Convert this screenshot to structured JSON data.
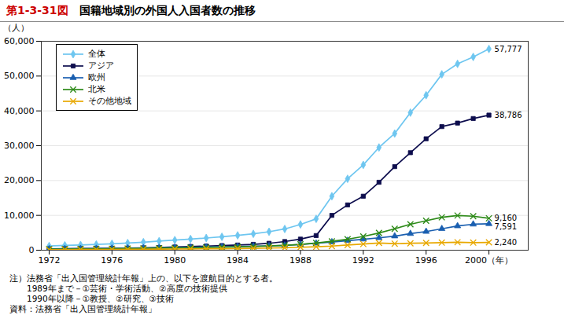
{
  "chart_data": {
    "type": "line",
    "title": "第1-3-31図",
    "subtitle": "　国籍地域別の外国人入国者数の推移",
    "ylabel": "（人）",
    "x": [
      1972,
      1973,
      1974,
      1975,
      1976,
      1977,
      1978,
      1979,
      1980,
      1981,
      1982,
      1983,
      1984,
      1985,
      1986,
      1987,
      1988,
      1989,
      1990,
      1991,
      1992,
      1993,
      1994,
      1995,
      1996,
      1997,
      1998,
      1999,
      2000
    ],
    "series": [
      {
        "name": "全体",
        "color": "#6ec6f0",
        "marker": "diamond",
        "values": [
          1200,
          1400,
          1500,
          1650,
          1850,
          2050,
          2300,
          2600,
          2900,
          3200,
          3500,
          3850,
          4250,
          4700,
          5300,
          6100,
          7400,
          9000,
          15500,
          20500,
          24500,
          29500,
          33500,
          39500,
          44500,
          50500,
          53500,
          55500,
          57777
        ]
      },
      {
        "name": "アジア",
        "color": "#0d0d4d",
        "marker": "square",
        "values": [
          380,
          430,
          460,
          490,
          540,
          600,
          680,
          780,
          920,
          1060,
          1180,
          1320,
          1480,
          1680,
          1980,
          2480,
          3180,
          4200,
          10000,
          13000,
          15500,
          19500,
          24000,
          28000,
          32000,
          35500,
          36500,
          37800,
          38786
        ]
      },
      {
        "name": "欧州",
        "color": "#1a5fb0",
        "marker": "triangle",
        "values": [
          340,
          390,
          420,
          460,
          510,
          560,
          620,
          690,
          770,
          840,
          910,
          980,
          1050,
          1140,
          1240,
          1390,
          1640,
          1980,
          2350,
          2750,
          3150,
          3550,
          4050,
          4750,
          5350,
          6150,
          6950,
          7450,
          7591
        ]
      },
      {
        "name": "北米",
        "color": "#2d8a18",
        "marker": "times",
        "values": [
          290,
          330,
          360,
          390,
          430,
          470,
          520,
          580,
          650,
          730,
          810,
          890,
          970,
          1070,
          1190,
          1390,
          1680,
          2080,
          2550,
          3150,
          3950,
          4950,
          6150,
          7450,
          8450,
          9450,
          9950,
          9750,
          9160
        ]
      },
      {
        "name": "その他地域",
        "color": "#e8a800",
        "marker": "times",
        "values": [
          140,
          160,
          180,
          195,
          215,
          235,
          265,
          295,
          335,
          375,
          405,
          445,
          495,
          555,
          625,
          715,
          845,
          990,
          1180,
          1480,
          1780,
          2080,
          1880,
          1980,
          2080,
          2180,
          2280,
          2180,
          2240
        ]
      }
    ],
    "annotations": [
      {
        "text": "57,777",
        "x": 2000,
        "y": 57777
      },
      {
        "text": "38,786",
        "x": 2000,
        "y": 38786
      },
      {
        "text": "9,160",
        "x": 2000,
        "y": 9160
      },
      {
        "text": "7,591",
        "x": 2000,
        "y": 7591
      },
      {
        "text": "2,240",
        "x": 2000,
        "y": 2240
      }
    ],
    "xlim": [
      1971.5,
      2002.5
    ],
    "xticks": [
      1972,
      1976,
      1980,
      1984,
      1988,
      1992,
      1996,
      {
        "value": 2000,
        "label": "2000（年）"
      }
    ],
    "ylim": [
      0,
      60000
    ],
    "yticks": [
      0,
      {
        "value": 10000,
        "label": "10,000"
      },
      {
        "value": 20000,
        "label": "20,000"
      },
      {
        "value": 30000,
        "label": "30,000"
      },
      {
        "value": 40000,
        "label": "40,000"
      },
      {
        "value": 50000,
        "label": "50,000"
      },
      {
        "value": 60000,
        "label": "60,000"
      }
    ],
    "grid": "y",
    "legend": "upper left",
    "notes": [
      "注）法務省「出入国管理統計年報」上の、以下を渡航目的とする者。",
      "　　1989年まで－①芸術・学術活動、②高度の技術提供",
      "　　1990年以降－①教授、②研究、③技術",
      "資料：法務省「出入国管理統計年報」"
    ]
  }
}
